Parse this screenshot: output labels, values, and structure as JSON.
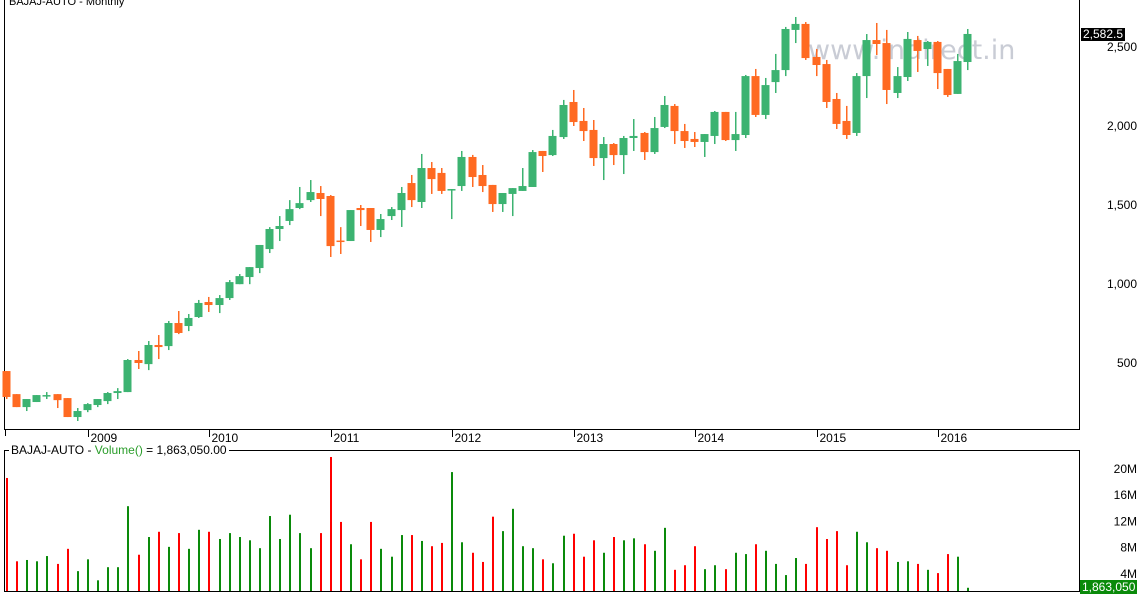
{
  "chart_data": [
    {
      "type": "candlestick",
      "symbol": "BAJAJ-AUTO",
      "period": "Monthly",
      "watermark": "www.indirect.in",
      "last_price_label": "2,582.5",
      "y_ticks": [
        500,
        1000,
        1500,
        2000,
        2500
      ],
      "y_tick_labels": [
        "500",
        "1,000",
        "1,500",
        "2,000",
        "2,500"
      ],
      "ylim": [
        100,
        2800
      ],
      "x_tick_labels": [
        "2009",
        "2010",
        "2011",
        "2012",
        "2013",
        "2014",
        "2015",
        "2016"
      ],
      "x_tick_dates": [
        "2009-01",
        "2010-01",
        "2011-01",
        "2012-01",
        "2013-01",
        "2014-01",
        "2015-01",
        "2016-01"
      ],
      "colors": {
        "up": "#3cb371",
        "down": "#ff6a22",
        "vol_up": "#0a8a0a",
        "vol_down": "#ff0000"
      },
      "columns": [
        "date",
        "open",
        "high",
        "low",
        "close",
        "volume_millions"
      ],
      "candles": [
        [
          "2008-05",
          449,
          449,
          272,
          285,
          18.6
        ],
        [
          "2008-06",
          303,
          303,
          221,
          221,
          5.9
        ],
        [
          "2008-07",
          221,
          272,
          196,
          272,
          6.1
        ],
        [
          "2008-08",
          253,
          297,
          253,
          297,
          5.9
        ],
        [
          "2008-09",
          290,
          316,
          272,
          297,
          6.7
        ],
        [
          "2008-10",
          303,
          303,
          215,
          265,
          5.5
        ],
        [
          "2008-11",
          278,
          278,
          158,
          158,
          7.8
        ],
        [
          "2008-12",
          158,
          215,
          133,
          196,
          4.4
        ],
        [
          "2009-01",
          202,
          246,
          189,
          240,
          6.2
        ],
        [
          "2009-02",
          234,
          272,
          221,
          272,
          3.0
        ],
        [
          "2009-03",
          259,
          316,
          240,
          310,
          5.0
        ],
        [
          "2009-04",
          310,
          341,
          272,
          322,
          5.0
        ],
        [
          "2009-05",
          316,
          525,
          316,
          519,
          14.3
        ],
        [
          "2009-06",
          519,
          576,
          462,
          500,
          6.9
        ],
        [
          "2009-07",
          493,
          639,
          455,
          614,
          9.6
        ],
        [
          "2009-08",
          614,
          677,
          525,
          601,
          10.4
        ],
        [
          "2009-09",
          607,
          766,
          582,
          753,
          8.1
        ],
        [
          "2009-10",
          753,
          829,
          683,
          690,
          10.2
        ],
        [
          "2009-11",
          734,
          810,
          702,
          785,
          7.8
        ],
        [
          "2009-12",
          791,
          899,
          785,
          880,
          10.7
        ],
        [
          "2010-01",
          886,
          918,
          823,
          867,
          10.4
        ],
        [
          "2010-02",
          867,
          930,
          816,
          911,
          9.3
        ],
        [
          "2010-03",
          911,
          1025,
          899,
          1012,
          10.2
        ],
        [
          "2010-04",
          999,
          1063,
          999,
          1050,
          9.6
        ],
        [
          "2010-05",
          1044,
          1107,
          999,
          1107,
          9.1
        ],
        [
          "2010-06",
          1101,
          1247,
          1069,
          1247,
          7.9
        ],
        [
          "2010-07",
          1221,
          1360,
          1196,
          1348,
          12.8
        ],
        [
          "2010-08",
          1348,
          1430,
          1272,
          1367,
          9.3
        ],
        [
          "2010-09",
          1399,
          1531,
          1373,
          1474,
          13.0
        ],
        [
          "2010-10",
          1481,
          1614,
          1474,
          1512,
          10.2
        ],
        [
          "2010-11",
          1531,
          1658,
          1519,
          1582,
          7.9
        ],
        [
          "2010-12",
          1576,
          1620,
          1430,
          1538,
          10.2
        ],
        [
          "2011-01",
          1557,
          1563,
          1171,
          1240,
          21.8
        ],
        [
          "2011-02",
          1275,
          1360,
          1190,
          1270,
          11.9
        ],
        [
          "2011-03",
          1272,
          1468,
          1272,
          1468,
          8.5
        ],
        [
          "2011-04",
          1481,
          1500,
          1367,
          1468,
          6.2
        ],
        [
          "2011-05",
          1481,
          1481,
          1266,
          1342,
          11.9
        ],
        [
          "2011-06",
          1342,
          1443,
          1297,
          1411,
          7.8
        ],
        [
          "2011-07",
          1430,
          1487,
          1405,
          1474,
          6.6
        ],
        [
          "2011-08",
          1468,
          1614,
          1361,
          1576,
          9.9
        ],
        [
          "2011-09",
          1639,
          1690,
          1487,
          1531,
          9.9
        ],
        [
          "2011-10",
          1519,
          1823,
          1481,
          1734,
          9.0
        ],
        [
          "2011-11",
          1734,
          1772,
          1570,
          1664,
          8.2
        ],
        [
          "2011-12",
          1703,
          1734,
          1570,
          1589,
          8.7
        ],
        [
          "2012-01",
          1595,
          1601,
          1411,
          1601,
          19.5
        ],
        [
          "2012-02",
          1620,
          1842,
          1589,
          1804,
          8.8
        ],
        [
          "2012-03",
          1804,
          1817,
          1614,
          1677,
          7.2
        ],
        [
          "2012-04",
          1690,
          1753,
          1582,
          1620,
          5.8
        ],
        [
          "2012-05",
          1627,
          1627,
          1456,
          1506,
          12.7
        ],
        [
          "2012-06",
          1506,
          1576,
          1456,
          1576,
          10.5
        ],
        [
          "2012-07",
          1570,
          1607,
          1430,
          1607,
          13.9
        ],
        [
          "2012-08",
          1589,
          1734,
          1589,
          1620,
          8.2
        ],
        [
          "2012-09",
          1614,
          1848,
          1614,
          1835,
          7.9
        ],
        [
          "2012-10",
          1842,
          1842,
          1709,
          1810,
          6.2
        ],
        [
          "2012-11",
          1816,
          1975,
          1810,
          1937,
          5.6
        ],
        [
          "2012-12",
          1930,
          2165,
          1918,
          2133,
          9.8
        ],
        [
          "2013-01",
          2152,
          2228,
          2000,
          2025,
          10.1
        ],
        [
          "2013-02",
          2032,
          2114,
          1905,
          1968,
          6.6
        ],
        [
          "2013-03",
          1975,
          2038,
          1747,
          1797,
          9.1
        ],
        [
          "2013-04",
          1797,
          1930,
          1658,
          1886,
          7.2
        ],
        [
          "2013-05",
          1886,
          1892,
          1753,
          1816,
          9.6
        ],
        [
          "2013-06",
          1816,
          1937,
          1696,
          1924,
          9.1
        ],
        [
          "2013-07",
          1924,
          2044,
          1842,
          1937,
          9.4
        ],
        [
          "2013-08",
          1956,
          1962,
          1785,
          1835,
          8.5
        ],
        [
          "2013-09",
          1835,
          2057,
          1823,
          1987,
          7.5
        ],
        [
          "2013-10",
          1994,
          2190,
          1987,
          2133,
          11.0
        ],
        [
          "2013-11",
          2127,
          2139,
          1886,
          1968,
          4.6
        ],
        [
          "2013-12",
          1968,
          2013,
          1861,
          1905,
          5.3
        ],
        [
          "2014-01",
          1918,
          1962,
          1867,
          1899,
          8.2
        ],
        [
          "2014-02",
          1899,
          1949,
          1804,
          1949,
          4.7
        ],
        [
          "2014-03",
          1937,
          2095,
          1886,
          2089,
          5.3
        ],
        [
          "2014-04",
          2089,
          2089,
          1905,
          1911,
          4.7
        ],
        [
          "2014-05",
          1911,
          2089,
          1842,
          1949,
          7.2
        ],
        [
          "2014-06",
          1943,
          2323,
          1924,
          2316,
          7.0
        ],
        [
          "2014-07",
          2316,
          2361,
          2057,
          2070,
          8.5
        ],
        [
          "2014-08",
          2070,
          2304,
          2044,
          2259,
          7.5
        ],
        [
          "2014-09",
          2278,
          2456,
          2209,
          2354,
          5.5
        ],
        [
          "2014-10",
          2354,
          2627,
          2316,
          2614,
          3.8
        ],
        [
          "2014-11",
          2608,
          2690,
          2525,
          2646,
          6.4
        ],
        [
          "2014-12",
          2646,
          2658,
          2418,
          2430,
          5.5
        ],
        [
          "2015-01",
          2437,
          2487,
          2316,
          2386,
          11.1
        ],
        [
          "2015-02",
          2392,
          2418,
          2114,
          2152,
          9.3
        ],
        [
          "2015-03",
          2171,
          2209,
          1981,
          2013,
          10.5
        ],
        [
          "2015-04",
          2032,
          2127,
          1918,
          1943,
          5.3
        ],
        [
          "2015-05",
          1956,
          2335,
          1937,
          2316,
          10.4
        ],
        [
          "2015-06",
          2316,
          2582,
          2177,
          2544,
          8.8
        ],
        [
          "2015-07",
          2544,
          2652,
          2449,
          2519,
          7.9
        ],
        [
          "2015-08",
          2525,
          2608,
          2139,
          2228,
          7.5
        ],
        [
          "2015-09",
          2209,
          2373,
          2177,
          2316,
          5.8
        ],
        [
          "2015-10",
          2310,
          2595,
          2285,
          2551,
          5.9
        ],
        [
          "2015-11",
          2544,
          2570,
          2342,
          2475,
          5.5
        ],
        [
          "2015-12",
          2487,
          2538,
          2380,
          2532,
          4.6
        ],
        [
          "2016-01",
          2532,
          2538,
          2234,
          2335,
          4.1
        ],
        [
          "2016-02",
          2361,
          2361,
          2184,
          2196,
          7.0
        ],
        [
          "2016-03",
          2203,
          2456,
          2203,
          2411,
          6.6
        ],
        [
          "2016-04",
          2405,
          2614,
          2354,
          2582.5,
          1.86305
        ]
      ]
    },
    {
      "type": "bar",
      "title_symbol": "BAJAJ-AUTO",
      "title_sep": " - ",
      "title_fn": "Volume()",
      "title_value": " = 1,863,050.00",
      "y_ticks": [
        4,
        8,
        12,
        16,
        20
      ],
      "y_tick_labels": [
        "4M",
        "8M",
        "12M",
        "16M",
        "20M"
      ],
      "ylim": [
        0,
        21.8
      ],
      "last_value_label": "1,863,050"
    }
  ]
}
